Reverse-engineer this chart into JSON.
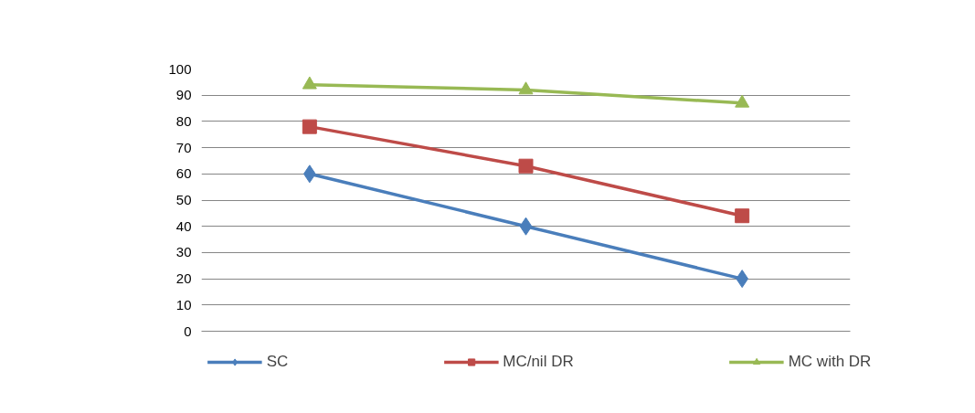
{
  "chart_data": {
    "type": "line",
    "categories": [
      null,
      null,
      null
    ],
    "series": [
      {
        "name": "SC",
        "color": "#4a7ebb",
        "values": [
          60,
          40,
          20
        ],
        "marker": "diamond"
      },
      {
        "name": "MC/nil DR",
        "color": "#be4b48",
        "values": [
          78,
          63,
          44
        ],
        "marker": "square"
      },
      {
        "name": "MC with DR",
        "color": "#98b954",
        "values": [
          94,
          92,
          87
        ],
        "marker": "triangle"
      }
    ],
    "ylim": [
      0,
      100
    ],
    "yticks": [
      0,
      10,
      20,
      30,
      40,
      50,
      60,
      70,
      80,
      90,
      100
    ],
    "grid": "y",
    "legend": "bottom",
    "tick_labels": "y",
    "line_style": "solid"
  }
}
